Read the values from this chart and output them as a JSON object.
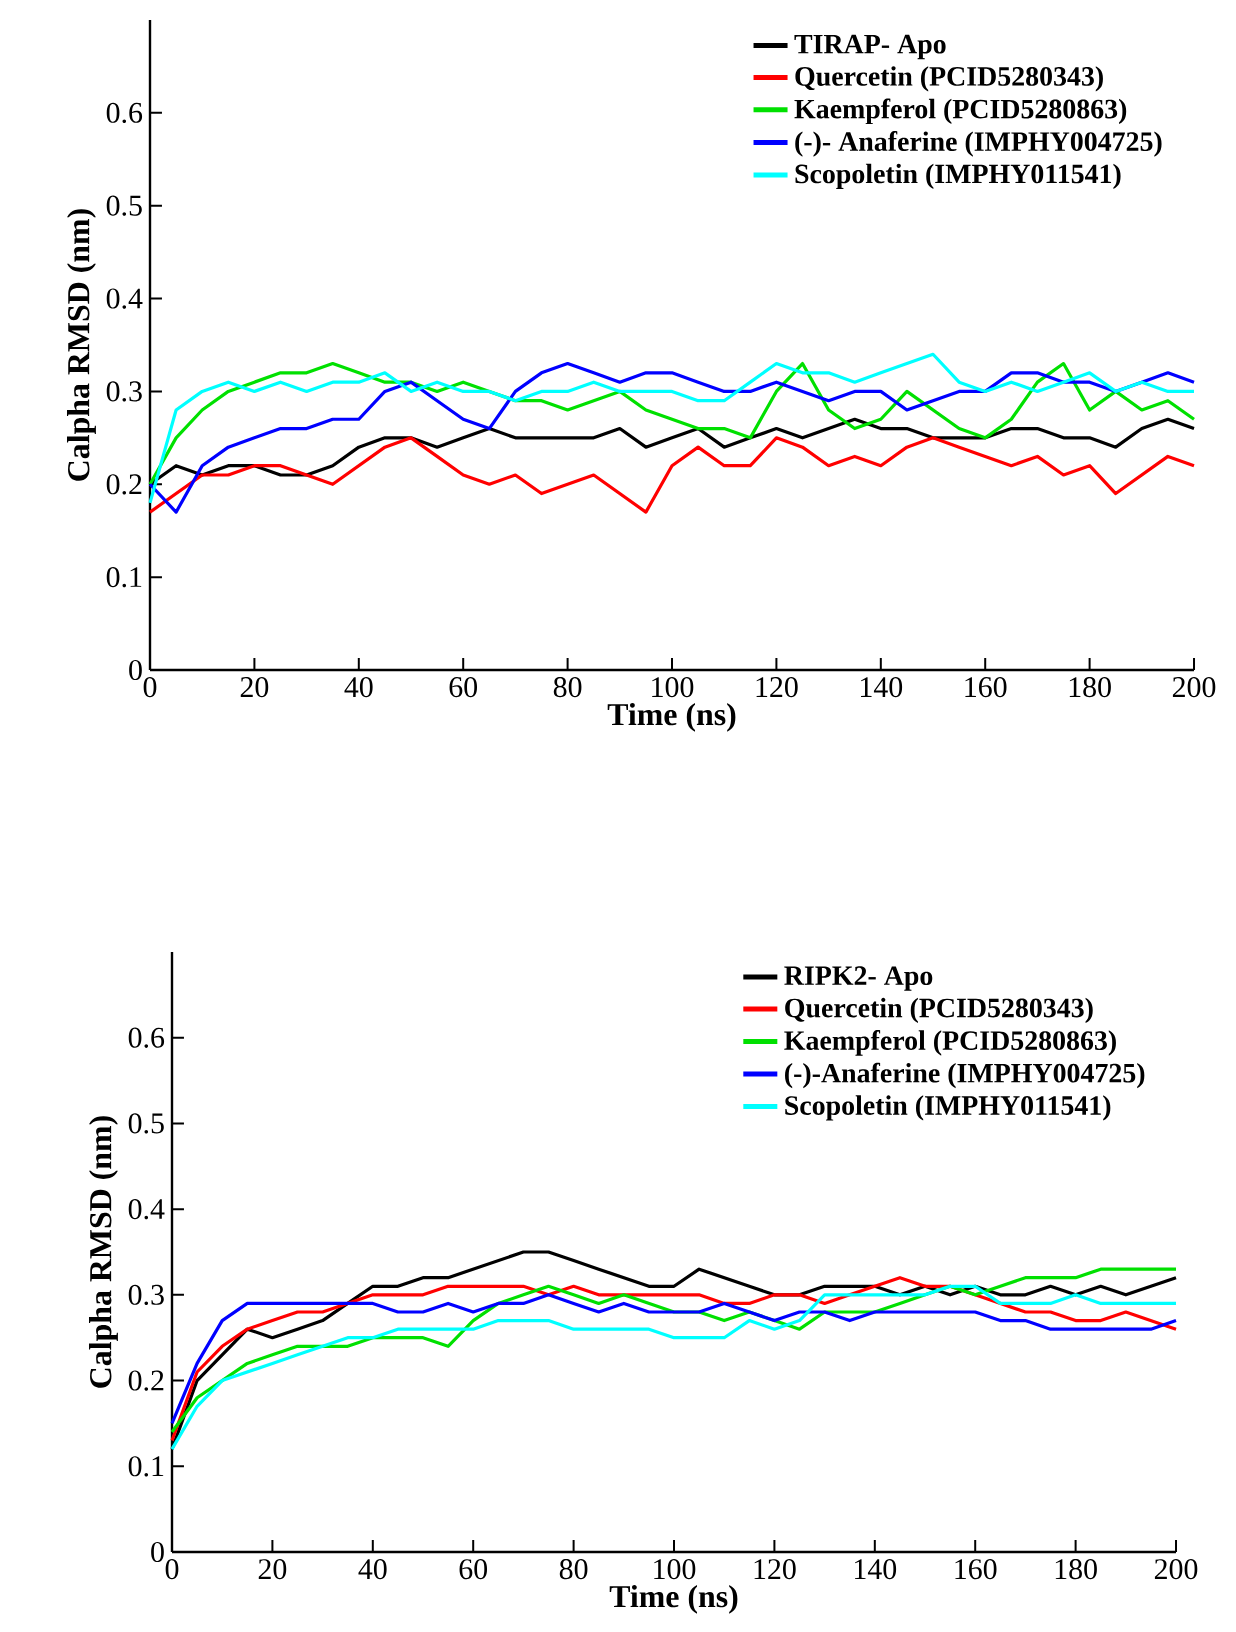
{
  "chart_data": [
    {
      "type": "line",
      "xlabel": "Time (ns)",
      "ylabel": "Calpha RMSD (nm)",
      "xlim": [
        0,
        200
      ],
      "ylim": [
        0,
        0.7
      ],
      "xticks": [
        0,
        20,
        40,
        60,
        80,
        100,
        120,
        140,
        160,
        180,
        200
      ],
      "yticks": [
        0,
        0.1,
        0.2,
        0.3,
        0.4,
        0.5,
        0.6
      ],
      "legend": "top right",
      "grid": false,
      "marker": "none",
      "x": [
        0,
        5,
        10,
        15,
        20,
        25,
        30,
        35,
        40,
        45,
        50,
        55,
        60,
        65,
        70,
        75,
        80,
        85,
        90,
        95,
        100,
        105,
        110,
        115,
        120,
        125,
        130,
        135,
        140,
        145,
        150,
        155,
        160,
        165,
        170,
        175,
        180,
        185,
        190,
        195,
        200
      ],
      "series": [
        {
          "name": "TIRAP- Apo",
          "color": "#000000",
          "values": [
            0.2,
            0.22,
            0.21,
            0.22,
            0.22,
            0.21,
            0.21,
            0.22,
            0.24,
            0.25,
            0.25,
            0.24,
            0.25,
            0.26,
            0.25,
            0.25,
            0.25,
            0.25,
            0.26,
            0.24,
            0.25,
            0.26,
            0.24,
            0.25,
            0.26,
            0.25,
            0.26,
            0.27,
            0.26,
            0.26,
            0.25,
            0.25,
            0.25,
            0.26,
            0.26,
            0.25,
            0.25,
            0.24,
            0.26,
            0.27,
            0.26
          ]
        },
        {
          "name": "Quercetin (PCID5280343)",
          "color": "#ff0000",
          "values": [
            0.17,
            0.19,
            0.21,
            0.21,
            0.22,
            0.22,
            0.21,
            0.2,
            0.22,
            0.24,
            0.25,
            0.23,
            0.21,
            0.2,
            0.21,
            0.19,
            0.2,
            0.21,
            0.19,
            0.17,
            0.22,
            0.24,
            0.22,
            0.22,
            0.25,
            0.24,
            0.22,
            0.23,
            0.22,
            0.24,
            0.25,
            0.24,
            0.23,
            0.22,
            0.23,
            0.21,
            0.22,
            0.19,
            0.21,
            0.23,
            0.22
          ]
        },
        {
          "name": "Kaempferol (PCID5280863)",
          "color": "#00e000",
          "values": [
            0.2,
            0.25,
            0.28,
            0.3,
            0.31,
            0.32,
            0.32,
            0.33,
            0.32,
            0.31,
            0.31,
            0.3,
            0.31,
            0.3,
            0.29,
            0.29,
            0.28,
            0.29,
            0.3,
            0.28,
            0.27,
            0.26,
            0.26,
            0.25,
            0.3,
            0.33,
            0.28,
            0.26,
            0.27,
            0.3,
            0.28,
            0.26,
            0.25,
            0.27,
            0.31,
            0.33,
            0.28,
            0.3,
            0.28,
            0.29,
            0.27
          ]
        },
        {
          "name": "(-)- Anaferine (IMPHY004725)",
          "color": "#0000ff",
          "values": [
            0.2,
            0.17,
            0.22,
            0.24,
            0.25,
            0.26,
            0.26,
            0.27,
            0.27,
            0.3,
            0.31,
            0.29,
            0.27,
            0.26,
            0.3,
            0.32,
            0.33,
            0.32,
            0.31,
            0.32,
            0.32,
            0.31,
            0.3,
            0.3,
            0.31,
            0.3,
            0.29,
            0.3,
            0.3,
            0.28,
            0.29,
            0.3,
            0.3,
            0.32,
            0.32,
            0.31,
            0.31,
            0.3,
            0.31,
            0.32,
            0.31
          ]
        },
        {
          "name": "Scopoletin (IMPHY011541)",
          "color": "#00ffff",
          "values": [
            0.18,
            0.28,
            0.3,
            0.31,
            0.3,
            0.31,
            0.3,
            0.31,
            0.31,
            0.32,
            0.3,
            0.31,
            0.3,
            0.3,
            0.29,
            0.3,
            0.3,
            0.31,
            0.3,
            0.3,
            0.3,
            0.29,
            0.29,
            0.31,
            0.33,
            0.32,
            0.32,
            0.31,
            0.32,
            0.33,
            0.34,
            0.31,
            0.3,
            0.31,
            0.3,
            0.31,
            0.32,
            0.3,
            0.31,
            0.3,
            0.3
          ]
        }
      ]
    },
    {
      "type": "line",
      "xlabel": "Time (ns)",
      "ylabel": "Calpha RMSD (nm)",
      "xlim": [
        0,
        200
      ],
      "ylim": [
        0,
        0.7
      ],
      "xticks": [
        0,
        20,
        40,
        60,
        80,
        100,
        120,
        140,
        160,
        180,
        200
      ],
      "yticks": [
        0,
        0.1,
        0.2,
        0.3,
        0.4,
        0.5,
        0.6
      ],
      "legend": "top right",
      "grid": false,
      "marker": "none",
      "x": [
        0,
        5,
        10,
        15,
        20,
        25,
        30,
        35,
        40,
        45,
        50,
        55,
        60,
        65,
        70,
        75,
        80,
        85,
        90,
        95,
        100,
        105,
        110,
        115,
        120,
        125,
        130,
        135,
        140,
        145,
        150,
        155,
        160,
        165,
        170,
        175,
        180,
        185,
        190,
        195,
        200
      ],
      "series": [
        {
          "name": "RIPK2- Apo",
          "color": "#000000",
          "values": [
            0.12,
            0.2,
            0.23,
            0.26,
            0.25,
            0.26,
            0.27,
            0.29,
            0.31,
            0.31,
            0.32,
            0.32,
            0.33,
            0.34,
            0.35,
            0.35,
            0.34,
            0.33,
            0.32,
            0.31,
            0.31,
            0.33,
            0.32,
            0.31,
            0.3,
            0.3,
            0.31,
            0.31,
            0.31,
            0.3,
            0.31,
            0.3,
            0.31,
            0.3,
            0.3,
            0.31,
            0.3,
            0.31,
            0.3,
            0.31,
            0.32
          ]
        },
        {
          "name": "Quercetin (PCID5280343)",
          "color": "#ff0000",
          "values": [
            0.13,
            0.21,
            0.24,
            0.26,
            0.27,
            0.28,
            0.28,
            0.29,
            0.3,
            0.3,
            0.3,
            0.31,
            0.31,
            0.31,
            0.31,
            0.3,
            0.31,
            0.3,
            0.3,
            0.3,
            0.3,
            0.3,
            0.29,
            0.29,
            0.3,
            0.3,
            0.29,
            0.3,
            0.31,
            0.32,
            0.31,
            0.31,
            0.3,
            0.29,
            0.28,
            0.28,
            0.27,
            0.27,
            0.28,
            0.27,
            0.26
          ]
        },
        {
          "name": "Kaempferol (PCID5280863)",
          "color": "#00e000",
          "values": [
            0.14,
            0.18,
            0.2,
            0.22,
            0.23,
            0.24,
            0.24,
            0.24,
            0.25,
            0.25,
            0.25,
            0.24,
            0.27,
            0.29,
            0.3,
            0.31,
            0.3,
            0.29,
            0.3,
            0.29,
            0.28,
            0.28,
            0.27,
            0.28,
            0.27,
            0.26,
            0.28,
            0.28,
            0.28,
            0.29,
            0.3,
            0.31,
            0.3,
            0.31,
            0.32,
            0.32,
            0.32,
            0.33,
            0.33,
            0.33,
            0.33
          ]
        },
        {
          "name": "(-)-Anaferine (IMPHY004725)",
          "color": "#0000ff",
          "values": [
            0.15,
            0.22,
            0.27,
            0.29,
            0.29,
            0.29,
            0.29,
            0.29,
            0.29,
            0.28,
            0.28,
            0.29,
            0.28,
            0.29,
            0.29,
            0.3,
            0.29,
            0.28,
            0.29,
            0.28,
            0.28,
            0.28,
            0.29,
            0.28,
            0.27,
            0.28,
            0.28,
            0.27,
            0.28,
            0.28,
            0.28,
            0.28,
            0.28,
            0.27,
            0.27,
            0.26,
            0.26,
            0.26,
            0.26,
            0.26,
            0.27
          ]
        },
        {
          "name": "Scopoletin (IMPHY011541)",
          "color": "#00ffff",
          "values": [
            0.12,
            0.17,
            0.2,
            0.21,
            0.22,
            0.23,
            0.24,
            0.25,
            0.25,
            0.26,
            0.26,
            0.26,
            0.26,
            0.27,
            0.27,
            0.27,
            0.26,
            0.26,
            0.26,
            0.26,
            0.25,
            0.25,
            0.25,
            0.27,
            0.26,
            0.27,
            0.3,
            0.3,
            0.3,
            0.3,
            0.3,
            0.31,
            0.31,
            0.29,
            0.29,
            0.29,
            0.3,
            0.29,
            0.29,
            0.29,
            0.29
          ]
        }
      ]
    }
  ]
}
